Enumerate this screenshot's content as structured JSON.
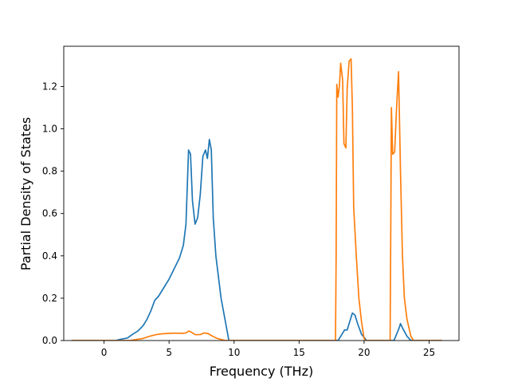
{
  "chart_data": {
    "type": "line",
    "title": "",
    "xlabel": "Frequency (THz)",
    "ylabel": "Partial Density of States",
    "xlim": [
      -3.1,
      27.3
    ],
    "ylim": [
      0,
      1.39
    ],
    "x_ticks": [
      0,
      5,
      10,
      15,
      20,
      25
    ],
    "y_ticks": [
      0.0,
      0.2,
      0.4,
      0.6,
      0.8,
      1.0,
      1.2
    ],
    "x_tick_labels": [
      "0",
      "5",
      "10",
      "15",
      "20",
      "25"
    ],
    "y_tick_labels": [
      "0.0",
      "0.2",
      "0.4",
      "0.6",
      "0.8",
      "1.0",
      "1.2"
    ],
    "grid": false,
    "legend": "none",
    "series": [
      {
        "color": "#1f77b4",
        "points": [
          [
            -2.5,
            0.0
          ],
          [
            0.9,
            0.0
          ],
          [
            1.2,
            0.005
          ],
          [
            1.8,
            0.012
          ],
          [
            2.2,
            0.03
          ],
          [
            2.6,
            0.045
          ],
          [
            3.0,
            0.07
          ],
          [
            3.3,
            0.1
          ],
          [
            3.6,
            0.14
          ],
          [
            3.9,
            0.19
          ],
          [
            4.2,
            0.21
          ],
          [
            4.6,
            0.25
          ],
          [
            5.0,
            0.29
          ],
          [
            5.4,
            0.34
          ],
          [
            5.8,
            0.39
          ],
          [
            6.1,
            0.45
          ],
          [
            6.3,
            0.55
          ],
          [
            6.5,
            0.9
          ],
          [
            6.65,
            0.88
          ],
          [
            6.8,
            0.66
          ],
          [
            7.0,
            0.55
          ],
          [
            7.2,
            0.58
          ],
          [
            7.4,
            0.69
          ],
          [
            7.6,
            0.87
          ],
          [
            7.8,
            0.9
          ],
          [
            7.95,
            0.86
          ],
          [
            8.1,
            0.95
          ],
          [
            8.25,
            0.9
          ],
          [
            8.4,
            0.58
          ],
          [
            8.6,
            0.4
          ],
          [
            8.8,
            0.3
          ],
          [
            9.0,
            0.2
          ],
          [
            9.3,
            0.1
          ],
          [
            9.6,
            0.0
          ],
          [
            18.0,
            0.0
          ],
          [
            18.3,
            0.03
          ],
          [
            18.5,
            0.05
          ],
          [
            18.7,
            0.05
          ],
          [
            18.9,
            0.09
          ],
          [
            19.1,
            0.13
          ],
          [
            19.3,
            0.12
          ],
          [
            19.5,
            0.08
          ],
          [
            19.8,
            0.03
          ],
          [
            20.2,
            0.0
          ],
          [
            22.3,
            0.0
          ],
          [
            22.5,
            0.03
          ],
          [
            22.7,
            0.06
          ],
          [
            22.8,
            0.08
          ],
          [
            22.95,
            0.06
          ],
          [
            23.3,
            0.02
          ],
          [
            23.6,
            0.0
          ],
          [
            26.0,
            0.0
          ]
        ]
      },
      {
        "color": "#ff7f0e",
        "points": [
          [
            -2.5,
            0.0
          ],
          [
            2.0,
            0.0
          ],
          [
            3.0,
            0.01
          ],
          [
            3.5,
            0.02
          ],
          [
            4.0,
            0.028
          ],
          [
            4.5,
            0.032
          ],
          [
            5.0,
            0.034
          ],
          [
            5.5,
            0.035
          ],
          [
            6.0,
            0.034
          ],
          [
            6.3,
            0.036
          ],
          [
            6.5,
            0.045
          ],
          [
            6.7,
            0.04
          ],
          [
            7.0,
            0.028
          ],
          [
            7.4,
            0.028
          ],
          [
            7.7,
            0.036
          ],
          [
            8.0,
            0.033
          ],
          [
            8.3,
            0.022
          ],
          [
            8.7,
            0.01
          ],
          [
            9.3,
            0.0
          ],
          [
            17.8,
            0.0
          ],
          [
            17.85,
            0.4
          ],
          [
            17.9,
            1.21
          ],
          [
            18.0,
            1.15
          ],
          [
            18.1,
            1.2
          ],
          [
            18.2,
            1.31
          ],
          [
            18.35,
            1.23
          ],
          [
            18.45,
            0.93
          ],
          [
            18.6,
            0.91
          ],
          [
            18.7,
            1.19
          ],
          [
            18.85,
            1.32
          ],
          [
            19.0,
            1.33
          ],
          [
            19.1,
            1.1
          ],
          [
            19.2,
            0.63
          ],
          [
            19.4,
            0.4
          ],
          [
            19.6,
            0.2
          ],
          [
            19.8,
            0.09
          ],
          [
            20.0,
            0.01
          ],
          [
            20.1,
            0.0
          ],
          [
            22.0,
            0.0
          ],
          [
            22.05,
            0.5
          ],
          [
            22.1,
            1.1
          ],
          [
            22.2,
            0.88
          ],
          [
            22.35,
            0.89
          ],
          [
            22.5,
            1.1
          ],
          [
            22.65,
            1.27
          ],
          [
            22.8,
            0.8
          ],
          [
            22.95,
            0.4
          ],
          [
            23.1,
            0.2
          ],
          [
            23.3,
            0.1
          ],
          [
            23.6,
            0.02
          ],
          [
            23.8,
            0.0
          ],
          [
            26.0,
            0.0
          ]
        ]
      }
    ]
  }
}
